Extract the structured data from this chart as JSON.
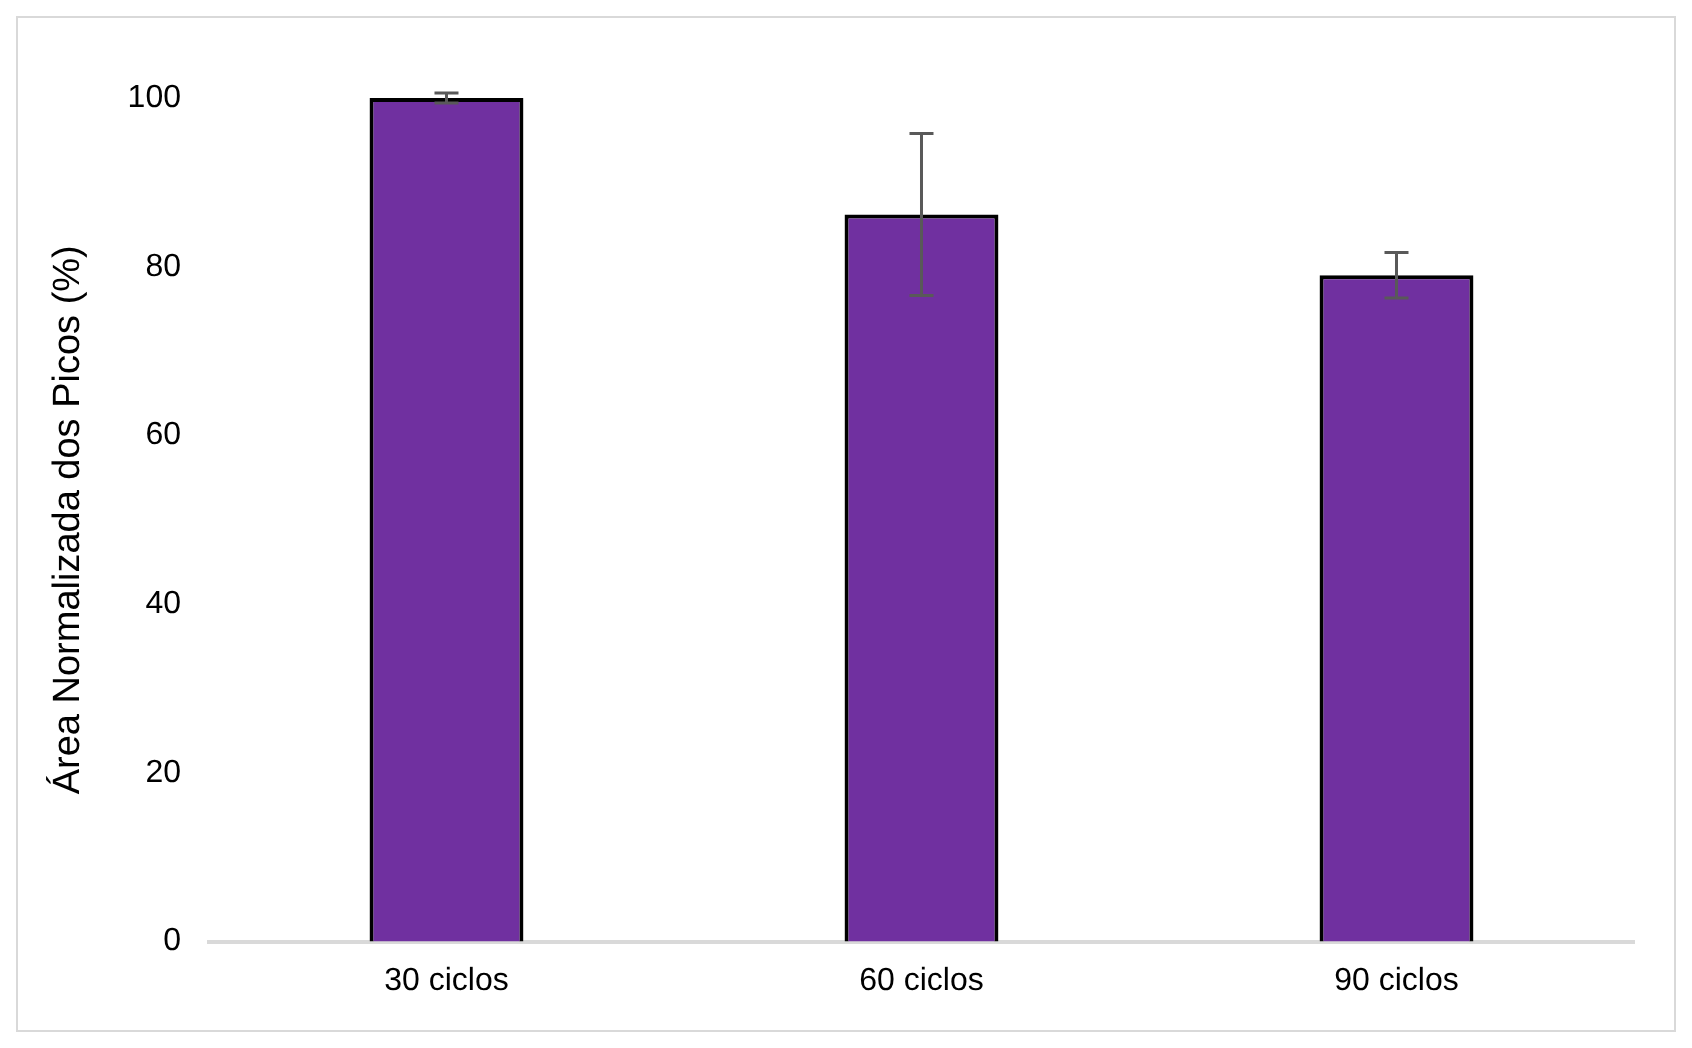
{
  "chart_data": {
    "type": "bar",
    "ylabel": "Área Normalizada dos Picos (%)",
    "categories": [
      "30 ciclos",
      "60 ciclos",
      "90 ciclos"
    ],
    "values": [
      100,
      86.2,
      79
    ],
    "errors": [
      0.6,
      9.6,
      2.7
    ],
    "color": "#7030a0",
    "ylim": [
      0,
      100
    ],
    "yticks": [
      0,
      20,
      40,
      60,
      80,
      100
    ],
    "grid": false
  }
}
